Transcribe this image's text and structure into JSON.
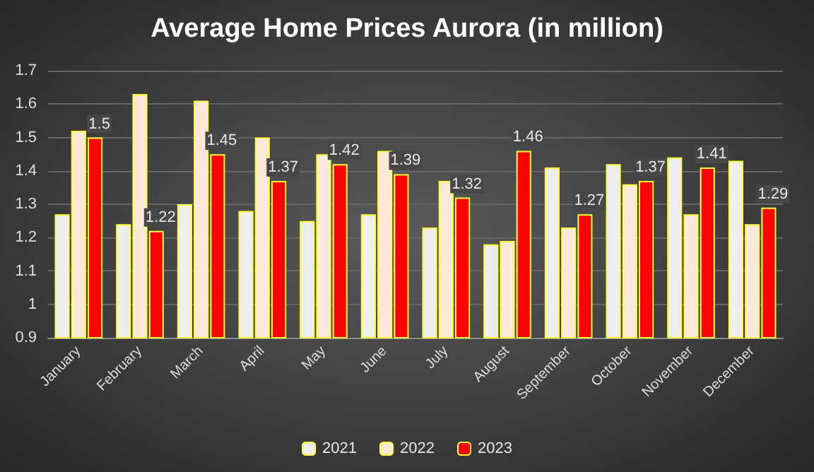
{
  "chart_data": {
    "type": "bar",
    "title": "Average Home Prices Aurora (in million)",
    "categories": [
      "January",
      "February",
      "March",
      "April",
      "May",
      "June",
      "July",
      "August",
      "September",
      "October",
      "November",
      "December"
    ],
    "series": [
      {
        "name": "2021",
        "color": "#eeeeee",
        "values": [
          1.27,
          1.24,
          1.3,
          1.28,
          1.25,
          1.27,
          1.23,
          1.18,
          1.41,
          1.42,
          1.44,
          1.43
        ]
      },
      {
        "name": "2022",
        "color": "#fde9d9",
        "values": [
          1.52,
          1.63,
          1.61,
          1.5,
          1.45,
          1.46,
          1.37,
          1.19,
          1.23,
          1.36,
          1.27,
          1.24
        ]
      },
      {
        "name": "2023",
        "color": "#ff0000",
        "values": [
          1.5,
          1.22,
          1.45,
          1.37,
          1.42,
          1.39,
          1.32,
          1.46,
          1.27,
          1.37,
          1.41,
          1.29
        ],
        "value_labels": [
          "1.5",
          "1.22",
          "1.45",
          "1.37",
          "1.42",
          "1.39",
          "1.32",
          "1.46",
          "1.27",
          "1.37",
          "1.41",
          "1.29"
        ]
      }
    ],
    "ylim": [
      0.9,
      1.7
    ],
    "yticks": [
      0.9,
      1,
      1.1,
      1.2,
      1.3,
      1.4,
      1.5,
      1.6,
      1.7
    ],
    "grid": "y",
    "legend": "bottom"
  }
}
